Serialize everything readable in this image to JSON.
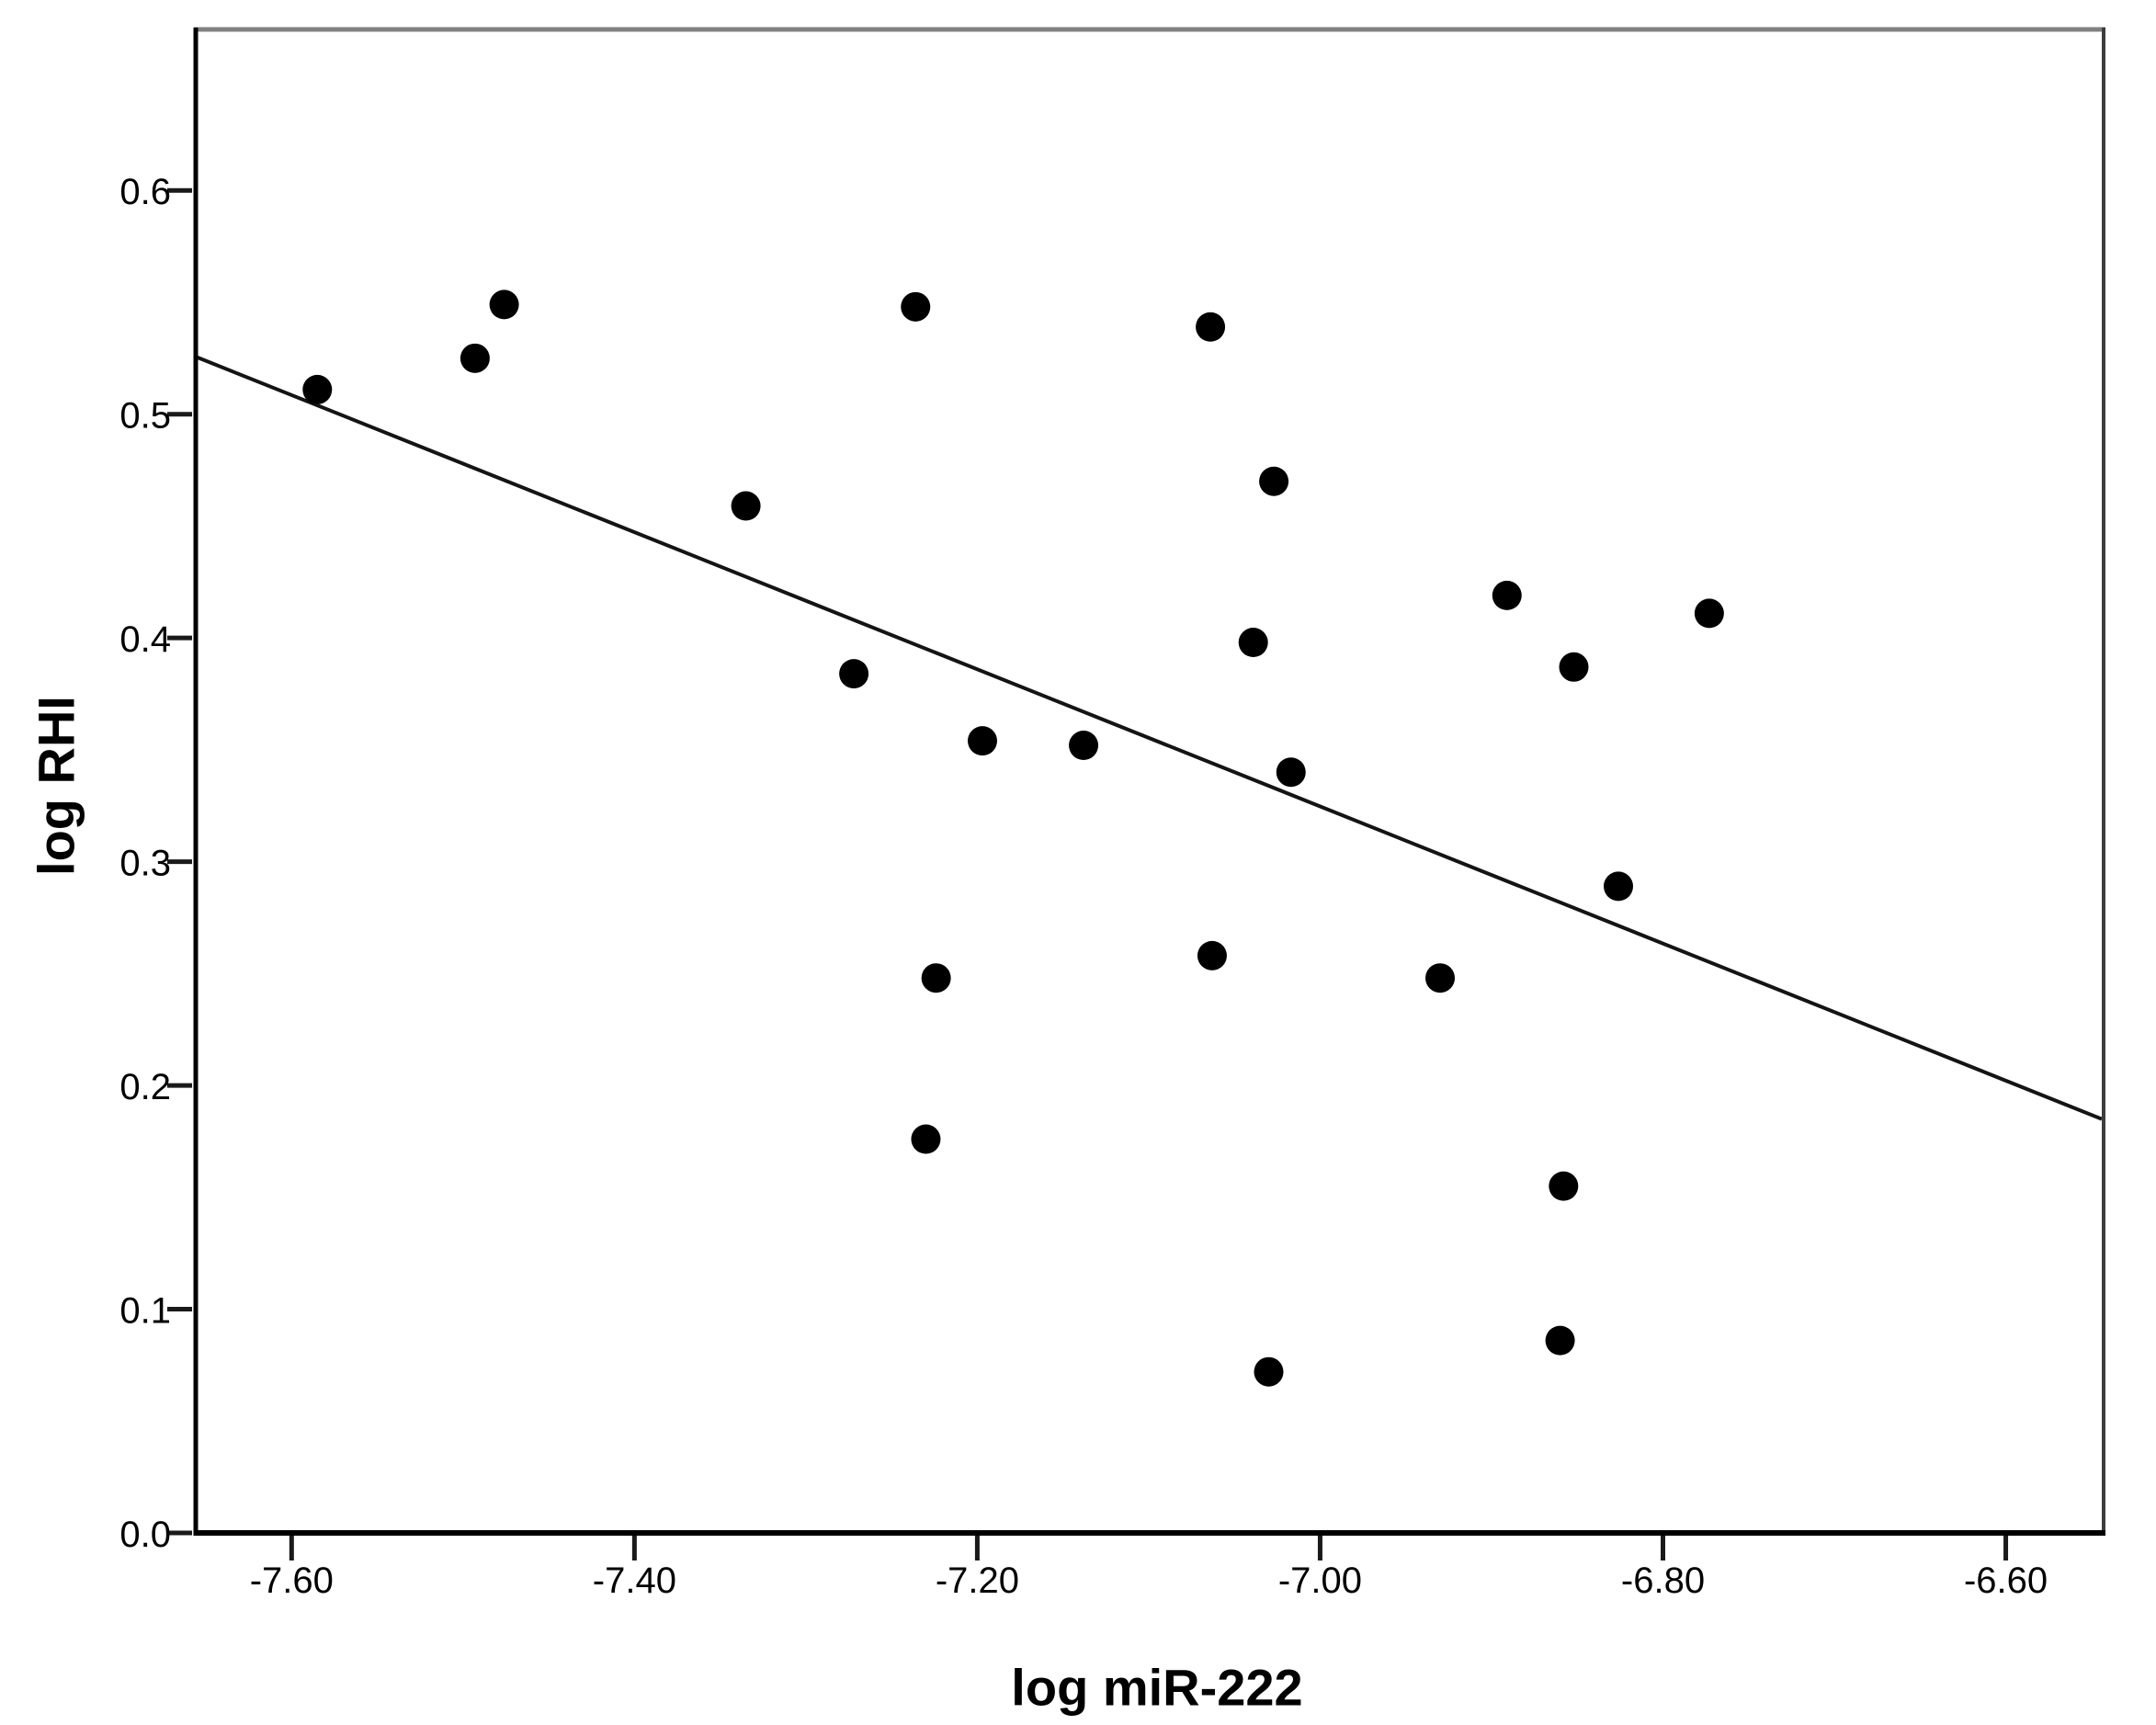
{
  "chart_data": {
    "type": "scatter",
    "title": "",
    "xlabel": "log miR-222",
    "ylabel": "log RHI",
    "xlim": [
      -7.657,
      -6.544
    ],
    "ylim": [
      0.0,
      0.6728
    ],
    "grid": false,
    "legend_position": "none",
    "x_ticks": [
      -7.6,
      -7.4,
      -7.2,
      -7.0,
      -6.8,
      -6.6
    ],
    "x_tick_labels": [
      "-7.60",
      "-7.40",
      "-7.20",
      "-7.00",
      "-6.80",
      "-6.60"
    ],
    "y_ticks": [
      0.0,
      0.1,
      0.2,
      0.3,
      0.4,
      0.5,
      0.6
    ],
    "y_tick_labels": [
      "0.0",
      "0.1",
      "0.2",
      "0.3",
      "0.4",
      "0.5",
      "0.6"
    ],
    "points": [
      [
        -7.585,
        0.511
      ],
      [
        -7.493,
        0.525
      ],
      [
        -7.476,
        0.549
      ],
      [
        -7.335,
        0.459
      ],
      [
        -7.272,
        0.384
      ],
      [
        -7.236,
        0.548
      ],
      [
        -7.23,
        0.176
      ],
      [
        -7.224,
        0.248
      ],
      [
        -7.197,
        0.354
      ],
      [
        -7.138,
        0.352
      ],
      [
        -7.064,
        0.539
      ],
      [
        -7.063,
        0.258
      ],
      [
        -7.039,
        0.398
      ],
      [
        -7.03,
        0.072
      ],
      [
        -7.027,
        0.47
      ],
      [
        -7.017,
        0.34
      ],
      [
        -6.93,
        0.248
      ],
      [
        -6.891,
        0.419
      ],
      [
        -6.86,
        0.086
      ],
      [
        -6.858,
        0.155
      ],
      [
        -6.852,
        0.387
      ],
      [
        -6.826,
        0.289
      ],
      [
        -6.773,
        0.411
      ]
    ],
    "fit_line": {
      "x1": -7.657,
      "y1": 0.526,
      "x2": -6.544,
      "y2": 0.185,
      "slope": -0.306
    }
  },
  "colors": {
    "background": "#ffffff",
    "marker": "#000000",
    "fit_line": "#141414",
    "axis": "#000000",
    "tick": "#1a1a1a",
    "frame_top": "#808080",
    "frame_right": "#3d3d3d",
    "text": "#000000"
  }
}
